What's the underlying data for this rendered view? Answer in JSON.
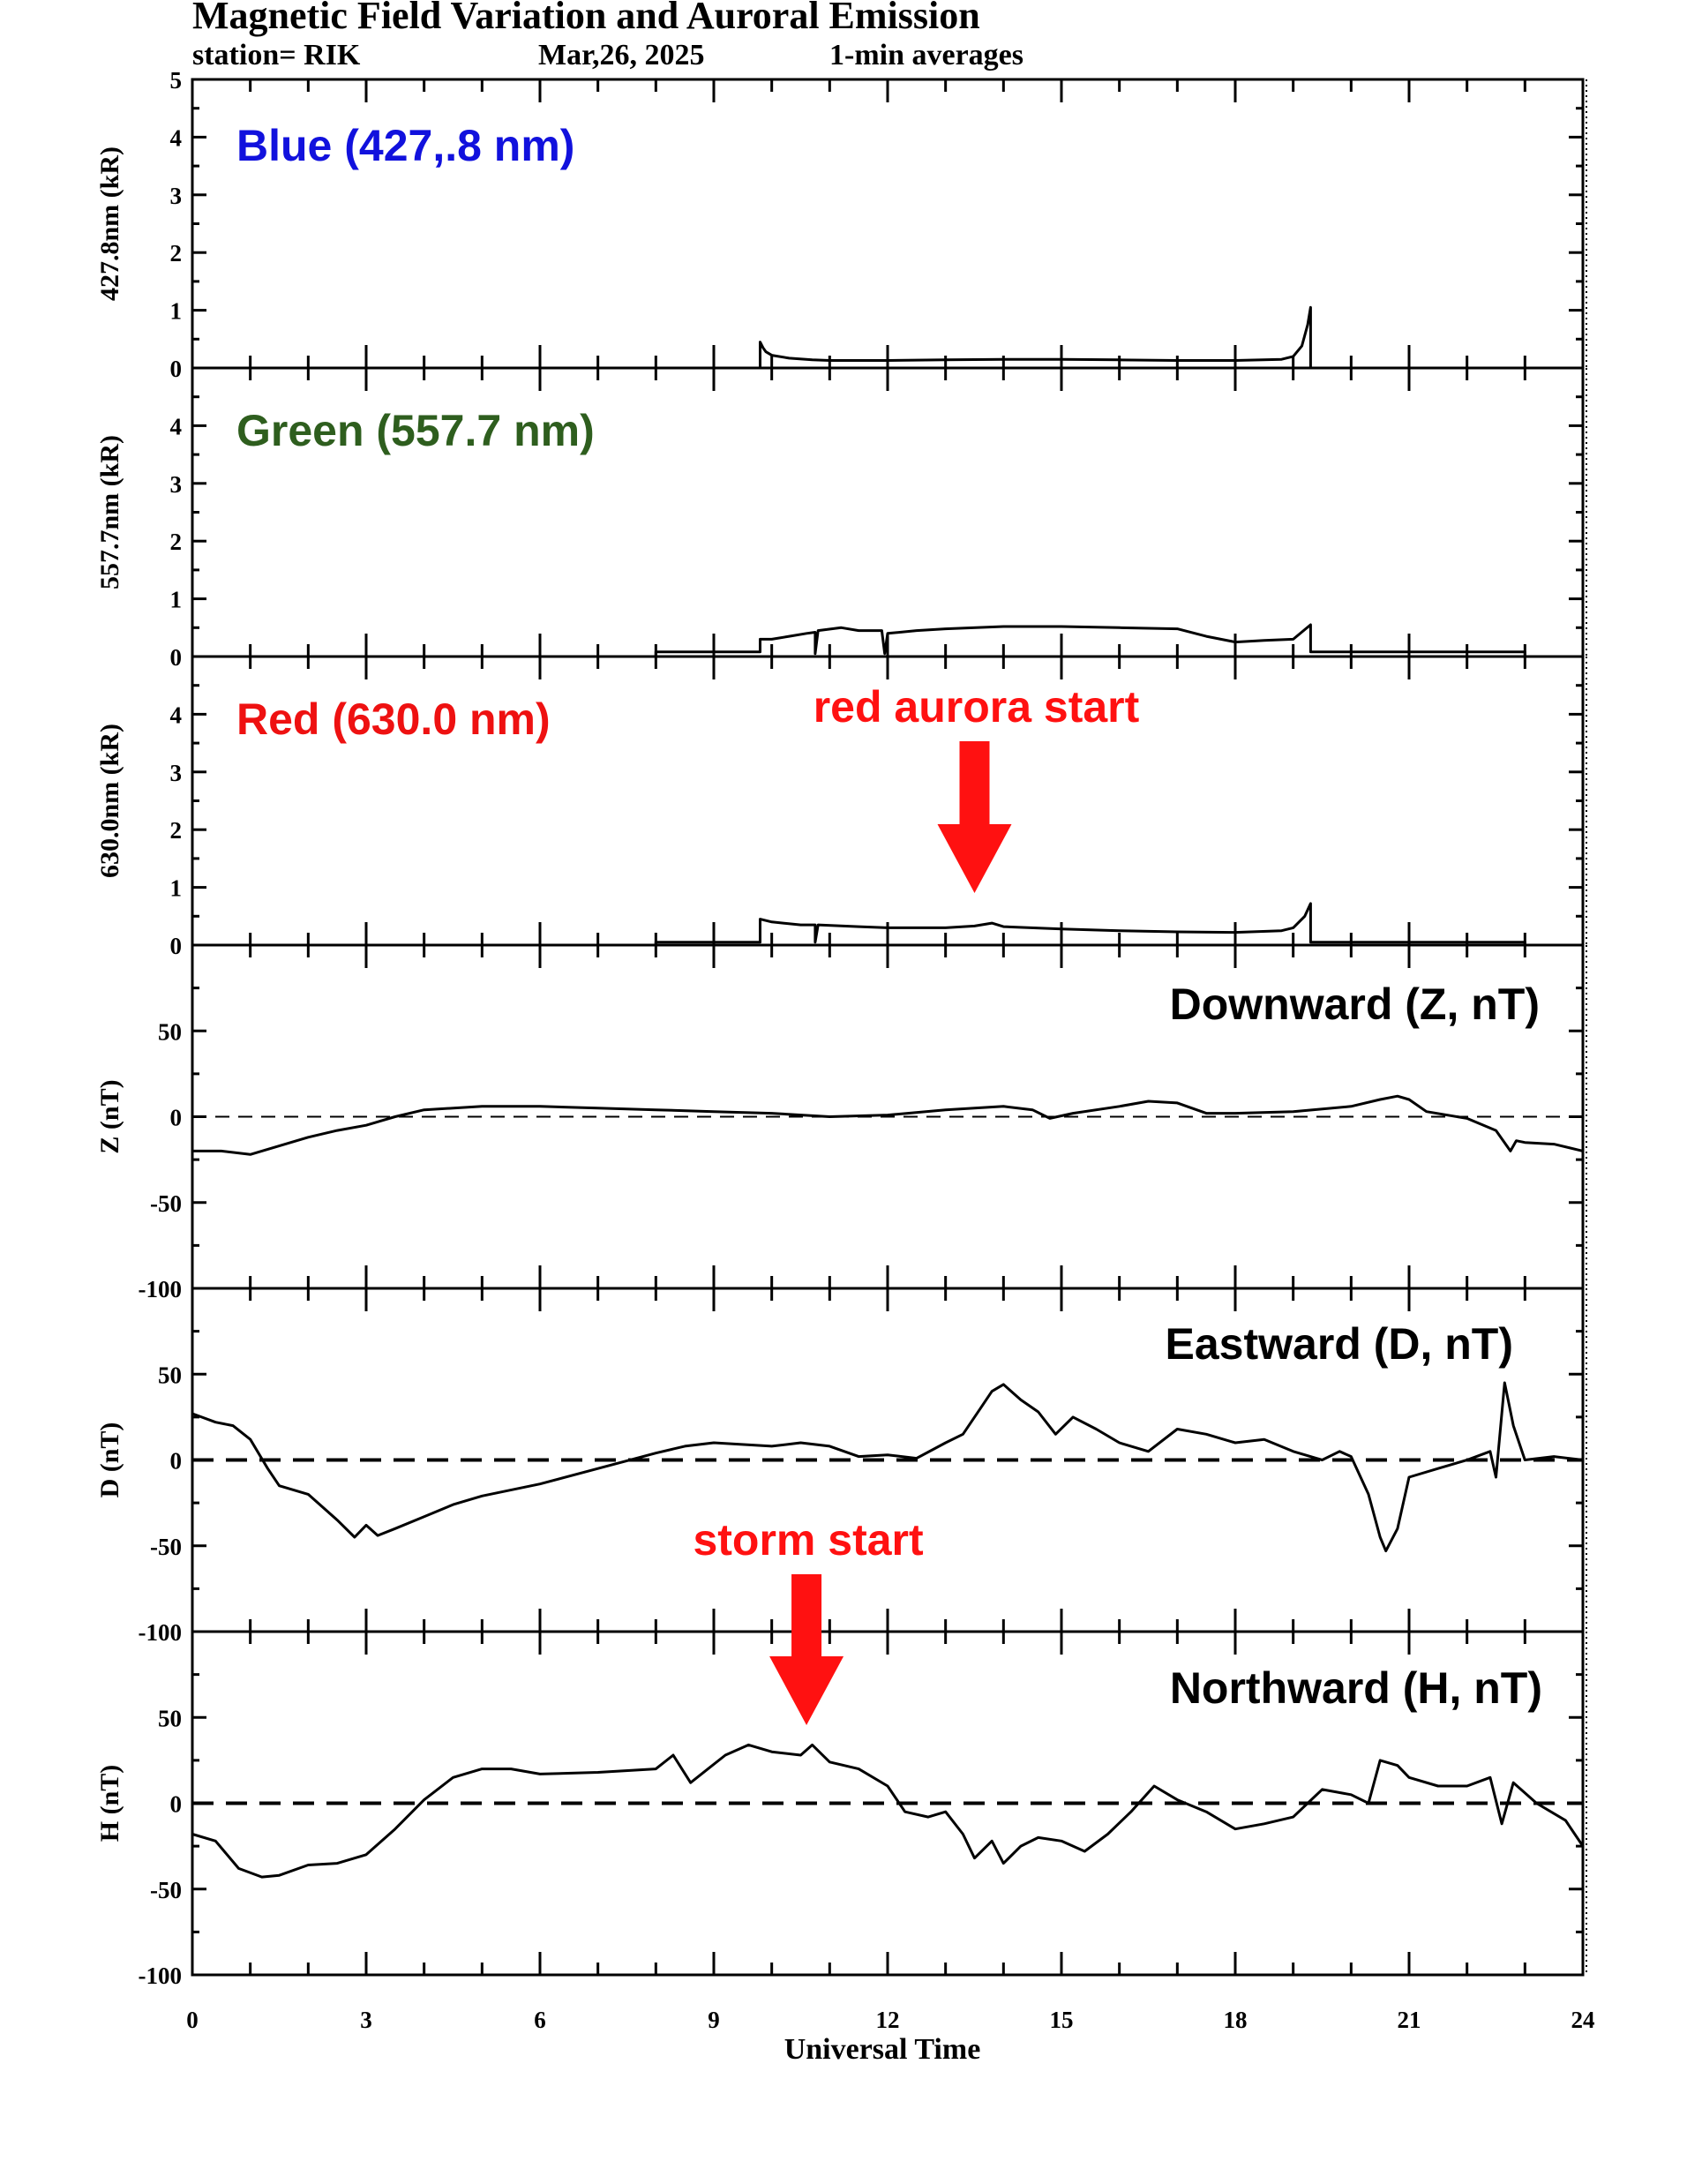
{
  "header": {
    "title": "Magnetic Field Variation and Auroral Emission",
    "station": "station= RIK",
    "date": "Mar,26, 2025",
    "averaging": "1-min averages"
  },
  "colors": {
    "blue_label": "#1111dd",
    "green_label": "#2e5e1e",
    "red_label": "#ee1111",
    "annotation": "#ff1111",
    "trace": "#000000"
  },
  "chart_data": {
    "type": "line",
    "xlabel": "Universal Time",
    "xlim": [
      0,
      24
    ],
    "xticks": [
      0,
      3,
      6,
      9,
      12,
      15,
      18,
      21,
      24
    ],
    "panels": [
      {
        "id": "blue",
        "label": "Blue (427,.8 nm)",
        "label_color": "#1111dd",
        "ylabel": "427.8nm (kR)",
        "ylim": [
          0,
          5
        ],
        "yticks": [
          0,
          1,
          2,
          3,
          4,
          5
        ],
        "zero_line": false,
        "segments": [
          [
            [
              9.8,
              0.0
            ],
            [
              9.8,
              0.45
            ],
            [
              9.85,
              0.35
            ],
            [
              9.9,
              0.28
            ],
            [
              10.0,
              0.22
            ],
            [
              10.3,
              0.17
            ],
            [
              10.7,
              0.14
            ],
            [
              11,
              0.13
            ],
            [
              12,
              0.13
            ],
            [
              13,
              0.14
            ],
            [
              14,
              0.15
            ],
            [
              15,
              0.15
            ],
            [
              16,
              0.14
            ],
            [
              17,
              0.13
            ],
            [
              18,
              0.13
            ],
            [
              18.8,
              0.15
            ],
            [
              19.0,
              0.2
            ],
            [
              19.15,
              0.38
            ],
            [
              19.25,
              0.75
            ],
            [
              19.3,
              1.05
            ],
            [
              19.3,
              0.0
            ]
          ]
        ]
      },
      {
        "id": "green",
        "label": "Green (557.7 nm)",
        "label_color": "#2e5e1e",
        "ylabel": "557.7nm (kR)",
        "ylim": [
          0,
          5
        ],
        "yticks": [
          0,
          1,
          2,
          3,
          4
        ],
        "zero_line": false,
        "segments": [
          [
            [
              8.0,
              0.0
            ],
            [
              8.0,
              0.08
            ],
            [
              9.8,
              0.08
            ],
            [
              9.8,
              0.3
            ],
            [
              10.0,
              0.3
            ],
            [
              10.3,
              0.35
            ],
            [
              10.6,
              0.4
            ],
            [
              10.75,
              0.42
            ],
            [
              10.75,
              0.05
            ],
            [
              10.8,
              0.45
            ],
            [
              11.2,
              0.5
            ],
            [
              11.5,
              0.45
            ],
            [
              11.9,
              0.45
            ],
            [
              11.95,
              0.05
            ],
            [
              12.0,
              0.4
            ],
            [
              12.5,
              0.45
            ],
            [
              13.0,
              0.48
            ],
            [
              14.0,
              0.52
            ],
            [
              15.0,
              0.52
            ],
            [
              16.0,
              0.5
            ],
            [
              17.0,
              0.48
            ],
            [
              17.5,
              0.35
            ],
            [
              18.0,
              0.25
            ],
            [
              18.5,
              0.28
            ],
            [
              19.0,
              0.3
            ],
            [
              19.3,
              0.55
            ],
            [
              19.3,
              0.08
            ],
            [
              23.0,
              0.08
            ],
            [
              23.0,
              0.0
            ]
          ]
        ]
      },
      {
        "id": "red",
        "label": "Red (630.0 nm)",
        "label_color": "#ee1111",
        "ylabel": "630.0nm (kR)",
        "ylim": [
          0,
          5
        ],
        "yticks": [
          0,
          1,
          2,
          3,
          4
        ],
        "zero_line": false,
        "segments": [
          [
            [
              8.0,
              0.0
            ],
            [
              8.0,
              0.05
            ],
            [
              9.8,
              0.05
            ],
            [
              9.8,
              0.45
            ],
            [
              10.0,
              0.4
            ],
            [
              10.5,
              0.35
            ],
            [
              10.75,
              0.35
            ],
            [
              10.75,
              0.05
            ],
            [
              10.8,
              0.35
            ],
            [
              11.5,
              0.32
            ],
            [
              12.0,
              0.3
            ],
            [
              13.0,
              0.3
            ],
            [
              13.5,
              0.33
            ],
            [
              13.8,
              0.38
            ],
            [
              14.0,
              0.32
            ],
            [
              15.0,
              0.28
            ],
            [
              16.0,
              0.25
            ],
            [
              17.0,
              0.23
            ],
            [
              18.0,
              0.22
            ],
            [
              18.8,
              0.25
            ],
            [
              19.0,
              0.3
            ],
            [
              19.2,
              0.5
            ],
            [
              19.3,
              0.72
            ],
            [
              19.3,
              0.05
            ],
            [
              23.0,
              0.05
            ],
            [
              23.0,
              0.0
            ]
          ]
        ]
      },
      {
        "id": "Z",
        "label": "Downward (Z, nT)",
        "label_color": "#000000",
        "ylabel": "Z (nT)",
        "ylim": [
          -100,
          100
        ],
        "yticks": [
          -100,
          -50,
          0,
          50
        ],
        "zero_line": true,
        "zero_dash": "thin",
        "segments": [
          [
            [
              0,
              -20
            ],
            [
              0.5,
              -20
            ],
            [
              1.0,
              -22
            ],
            [
              1.5,
              -17
            ],
            [
              2.0,
              -12
            ],
            [
              2.5,
              -8
            ],
            [
              3.0,
              -5
            ],
            [
              3.5,
              0
            ],
            [
              4.0,
              4
            ],
            [
              5.0,
              6
            ],
            [
              6.0,
              6
            ],
            [
              7.0,
              5
            ],
            [
              8.0,
              4
            ],
            [
              9.0,
              3
            ],
            [
              10.0,
              2
            ],
            [
              11.0,
              0
            ],
            [
              12.0,
              1
            ],
            [
              13.0,
              4
            ],
            [
              14.0,
              6
            ],
            [
              14.5,
              4
            ],
            [
              14.8,
              -1
            ],
            [
              15.2,
              2
            ],
            [
              16.0,
              6
            ],
            [
              16.5,
              9
            ],
            [
              17.0,
              8
            ],
            [
              17.5,
              2
            ],
            [
              18.0,
              2
            ],
            [
              19.0,
              3
            ],
            [
              20.0,
              6
            ],
            [
              20.5,
              10
            ],
            [
              20.8,
              12
            ],
            [
              21.0,
              10
            ],
            [
              21.3,
              3
            ],
            [
              22.0,
              -1
            ],
            [
              22.5,
              -8
            ],
            [
              22.75,
              -20
            ],
            [
              22.85,
              -14
            ],
            [
              23.0,
              -15
            ],
            [
              23.5,
              -16
            ],
            [
              24.0,
              -20
            ]
          ]
        ]
      },
      {
        "id": "D",
        "label": "Eastward (D, nT)",
        "label_color": "#000000",
        "ylabel": "D (nT)",
        "ylim": [
          -100,
          100
        ],
        "yticks": [
          -100,
          -50,
          0,
          50
        ],
        "zero_line": true,
        "zero_dash": "thick",
        "segments": [
          [
            [
              0,
              27
            ],
            [
              0.4,
              22
            ],
            [
              0.7,
              20
            ],
            [
              1.0,
              12
            ],
            [
              1.3,
              -5
            ],
            [
              1.5,
              -15
            ],
            [
              2.0,
              -20
            ],
            [
              2.5,
              -35
            ],
            [
              2.8,
              -45
            ],
            [
              3.0,
              -38
            ],
            [
              3.2,
              -44
            ],
            [
              3.5,
              -40
            ],
            [
              4.0,
              -33
            ],
            [
              4.5,
              -26
            ],
            [
              5.0,
              -21
            ],
            [
              6.0,
              -14
            ],
            [
              7.0,
              -5
            ],
            [
              8.0,
              4
            ],
            [
              8.5,
              8
            ],
            [
              9.0,
              10
            ],
            [
              10.0,
              8
            ],
            [
              10.5,
              10
            ],
            [
              11.0,
              8
            ],
            [
              11.5,
              2
            ],
            [
              12.0,
              3
            ],
            [
              12.5,
              1
            ],
            [
              13.0,
              10
            ],
            [
              13.3,
              15
            ],
            [
              13.6,
              30
            ],
            [
              13.8,
              40
            ],
            [
              14.0,
              44
            ],
            [
              14.3,
              35
            ],
            [
              14.6,
              28
            ],
            [
              14.9,
              15
            ],
            [
              15.2,
              25
            ],
            [
              15.6,
              18
            ],
            [
              16.0,
              10
            ],
            [
              16.5,
              5
            ],
            [
              17.0,
              18
            ],
            [
              17.5,
              15
            ],
            [
              18.0,
              10
            ],
            [
              18.5,
              12
            ],
            [
              19.0,
              5
            ],
            [
              19.5,
              0
            ],
            [
              19.8,
              5
            ],
            [
              20.0,
              2
            ],
            [
              20.3,
              -20
            ],
            [
              20.5,
              -45
            ],
            [
              20.6,
              -53
            ],
            [
              20.8,
              -40
            ],
            [
              21.0,
              -10
            ],
            [
              21.5,
              -5
            ],
            [
              22.0,
              0
            ],
            [
              22.4,
              5
            ],
            [
              22.5,
              -10
            ],
            [
              22.65,
              45
            ],
            [
              22.8,
              20
            ],
            [
              23.0,
              0
            ],
            [
              23.5,
              2
            ],
            [
              24.0,
              0
            ]
          ]
        ]
      },
      {
        "id": "H",
        "label": "Northward (H, nT)",
        "label_color": "#000000",
        "ylabel": "H (nT)",
        "ylim": [
          -100,
          100
        ],
        "yticks": [
          -100,
          -50,
          0,
          50
        ],
        "zero_line": true,
        "zero_dash": "thick",
        "segments": [
          [
            [
              0,
              -18
            ],
            [
              0.4,
              -22
            ],
            [
              0.8,
              -38
            ],
            [
              1.2,
              -43
            ],
            [
              1.5,
              -42
            ],
            [
              2.0,
              -36
            ],
            [
              2.5,
              -35
            ],
            [
              3.0,
              -30
            ],
            [
              3.5,
              -15
            ],
            [
              4.0,
              2
            ],
            [
              4.5,
              15
            ],
            [
              5.0,
              20
            ],
            [
              5.5,
              20
            ],
            [
              6.0,
              17
            ],
            [
              7.0,
              18
            ],
            [
              8.0,
              20
            ],
            [
              8.3,
              28
            ],
            [
              8.6,
              12
            ],
            [
              8.9,
              20
            ],
            [
              9.2,
              28
            ],
            [
              9.6,
              34
            ],
            [
              10.0,
              30
            ],
            [
              10.5,
              28
            ],
            [
              10.7,
              34
            ],
            [
              11.0,
              24
            ],
            [
              11.5,
              20
            ],
            [
              12.0,
              10
            ],
            [
              12.3,
              -5
            ],
            [
              12.7,
              -8
            ],
            [
              13.0,
              -5
            ],
            [
              13.3,
              -18
            ],
            [
              13.5,
              -32
            ],
            [
              13.8,
              -22
            ],
            [
              14.0,
              -35
            ],
            [
              14.3,
              -25
            ],
            [
              14.6,
              -20
            ],
            [
              15.0,
              -22
            ],
            [
              15.4,
              -28
            ],
            [
              15.8,
              -18
            ],
            [
              16.2,
              -5
            ],
            [
              16.6,
              10
            ],
            [
              17.0,
              2
            ],
            [
              17.5,
              -5
            ],
            [
              18.0,
              -15
            ],
            [
              18.5,
              -12
            ],
            [
              19.0,
              -8
            ],
            [
              19.5,
              8
            ],
            [
              20.0,
              5
            ],
            [
              20.3,
              0
            ],
            [
              20.5,
              25
            ],
            [
              20.8,
              22
            ],
            [
              21.0,
              15
            ],
            [
              21.5,
              10
            ],
            [
              22.0,
              10
            ],
            [
              22.4,
              15
            ],
            [
              22.6,
              -12
            ],
            [
              22.8,
              12
            ],
            [
              23.2,
              0
            ],
            [
              23.7,
              -10
            ],
            [
              24.0,
              -25
            ]
          ]
        ]
      }
    ],
    "annotations": [
      {
        "text": "red aurora start",
        "panel": "red",
        "x": 13.5
      },
      {
        "text": "storm start",
        "panel": "D",
        "x": 10.6
      }
    ]
  }
}
